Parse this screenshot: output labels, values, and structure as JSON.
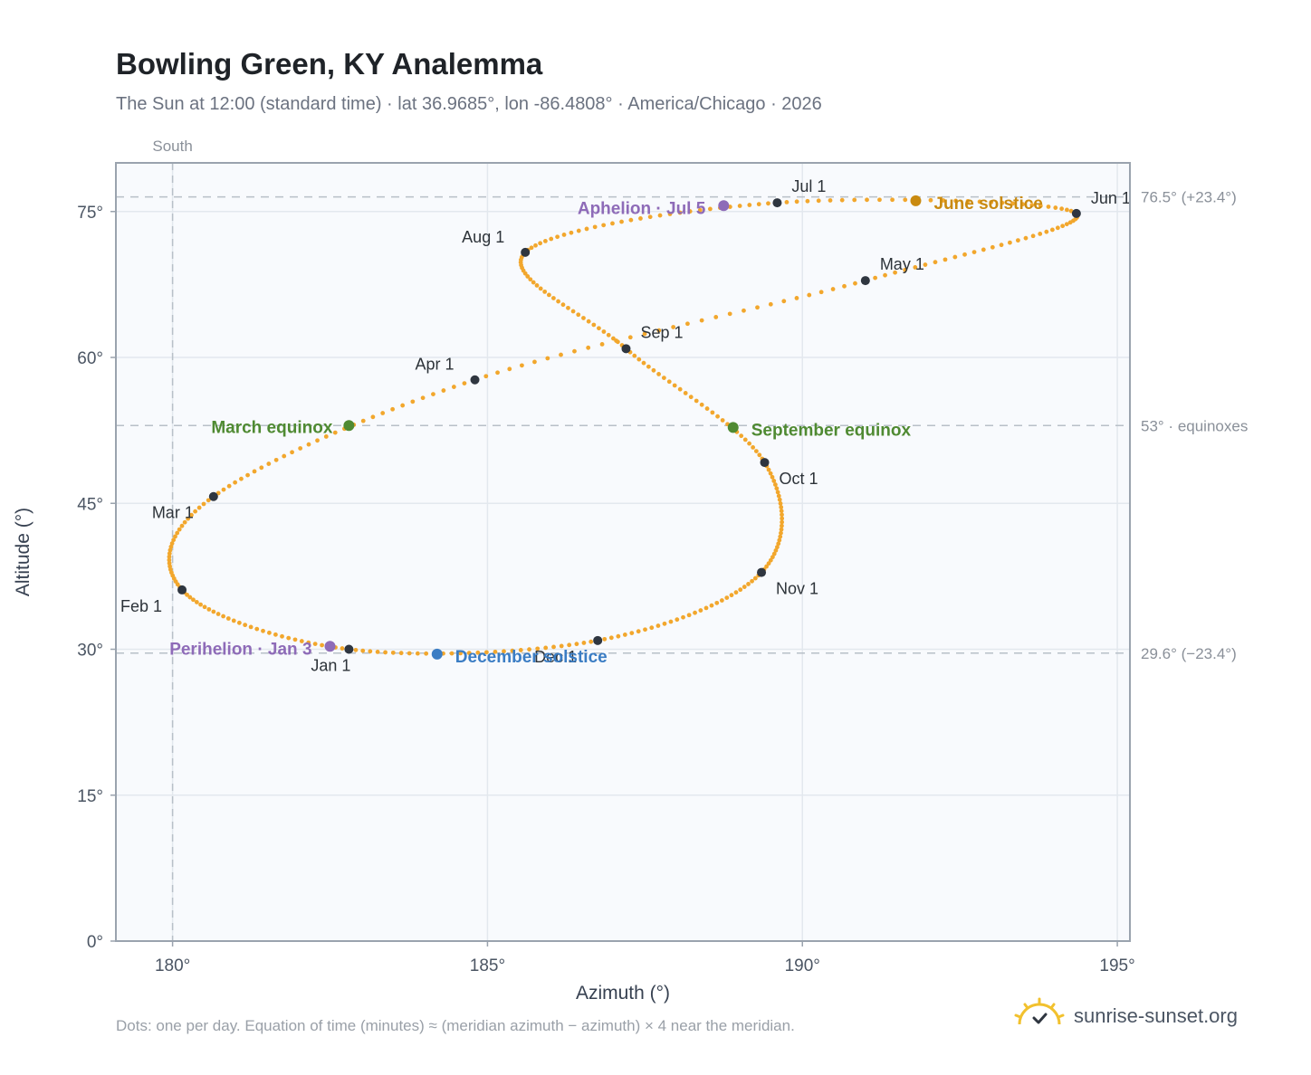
{
  "title": "Bowling Green, KY Analemma",
  "subtitle": "The Sun at 12:00 (standard time) · lat 36.9685°, lon -86.4808° · America/Chicago · 2026",
  "footnote": "Dots: one per day. Equation of time (minutes) ≈ (meridian azimuth − azimuth) × 4 near the meridian.",
  "brand": {
    "name": "sunrise-sunset.org",
    "icon": "sun-check-icon"
  },
  "colors": {
    "curve": "#f2a72d",
    "month_marker": "#2f3640",
    "equinox": "#4f8a32",
    "june_solstice": "#c98a10",
    "december_solstice": "#3b7dc4",
    "apsis": "#8e6bb8",
    "plot_bg": "#f8fafd",
    "grid": "#e3e8ee",
    "frame": "#9aa3ae",
    "ref_line": "#b8c0c8"
  },
  "chart_data": {
    "type": "scatter",
    "xlabel": "Azimuth (°)",
    "ylabel": "Altitude (°)",
    "xlim": [
      179.1,
      195.2
    ],
    "ylim": [
      0,
      80
    ],
    "x_ticks": [
      {
        "v": 180,
        "label": "180°"
      },
      {
        "v": 185,
        "label": "185°"
      },
      {
        "v": 190,
        "label": "190°"
      },
      {
        "v": 195,
        "label": "195°"
      }
    ],
    "y_ticks": [
      {
        "v": 0,
        "label": "0°"
      },
      {
        "v": 15,
        "label": "15°"
      },
      {
        "v": 30,
        "label": "30°"
      },
      {
        "v": 45,
        "label": "45°"
      },
      {
        "v": 60,
        "label": "60°"
      },
      {
        "v": 75,
        "label": "75°"
      }
    ],
    "grid": true,
    "meridian": {
      "azimuth": 180,
      "label": "South"
    },
    "reference_lines": [
      {
        "altitude": 76.5,
        "label": "76.5° (+23.4°)"
      },
      {
        "altitude": 53,
        "label": "53° · equinoxes"
      },
      {
        "altitude": 29.6,
        "label": "29.6° (−23.4°)"
      }
    ],
    "month_points": [
      {
        "label": "Jan 1",
        "az": 182.8,
        "alt": 30.0
      },
      {
        "label": "Feb 1",
        "az": 180.15,
        "alt": 36.1
      },
      {
        "label": "Mar 1",
        "az": 180.65,
        "alt": 45.7
      },
      {
        "label": "Apr 1",
        "az": 184.8,
        "alt": 57.7
      },
      {
        "label": "May 1",
        "az": 191.0,
        "alt": 67.9
      },
      {
        "label": "Jun 1",
        "az": 194.35,
        "alt": 74.8
      },
      {
        "label": "Jul 1",
        "az": 189.6,
        "alt": 75.9
      },
      {
        "label": "Aug 1",
        "az": 185.6,
        "alt": 70.8
      },
      {
        "label": "Sep 1",
        "az": 187.2,
        "alt": 60.9
      },
      {
        "label": "Oct 1",
        "az": 189.4,
        "alt": 49.2
      },
      {
        "label": "Nov 1",
        "az": 189.35,
        "alt": 37.9
      },
      {
        "label": "Dec 1",
        "az": 186.75,
        "alt": 30.9
      }
    ],
    "events": [
      {
        "label": "March equinox",
        "az": 182.8,
        "alt": 53.0,
        "kind": "equinox"
      },
      {
        "label": "September equinox",
        "az": 188.9,
        "alt": 52.8,
        "kind": "equinox"
      },
      {
        "label": "June solstice",
        "az": 191.8,
        "alt": 76.1,
        "kind": "june_solstice"
      },
      {
        "label": "December solstice",
        "az": 184.2,
        "alt": 29.5,
        "kind": "december_solstice"
      },
      {
        "label": "Aphelion · Jul 5",
        "az": 188.75,
        "alt": 75.6,
        "kind": "apsis"
      },
      {
        "label": "Perihelion · Jan 3",
        "az": 182.5,
        "alt": 30.3,
        "kind": "apsis"
      }
    ]
  }
}
